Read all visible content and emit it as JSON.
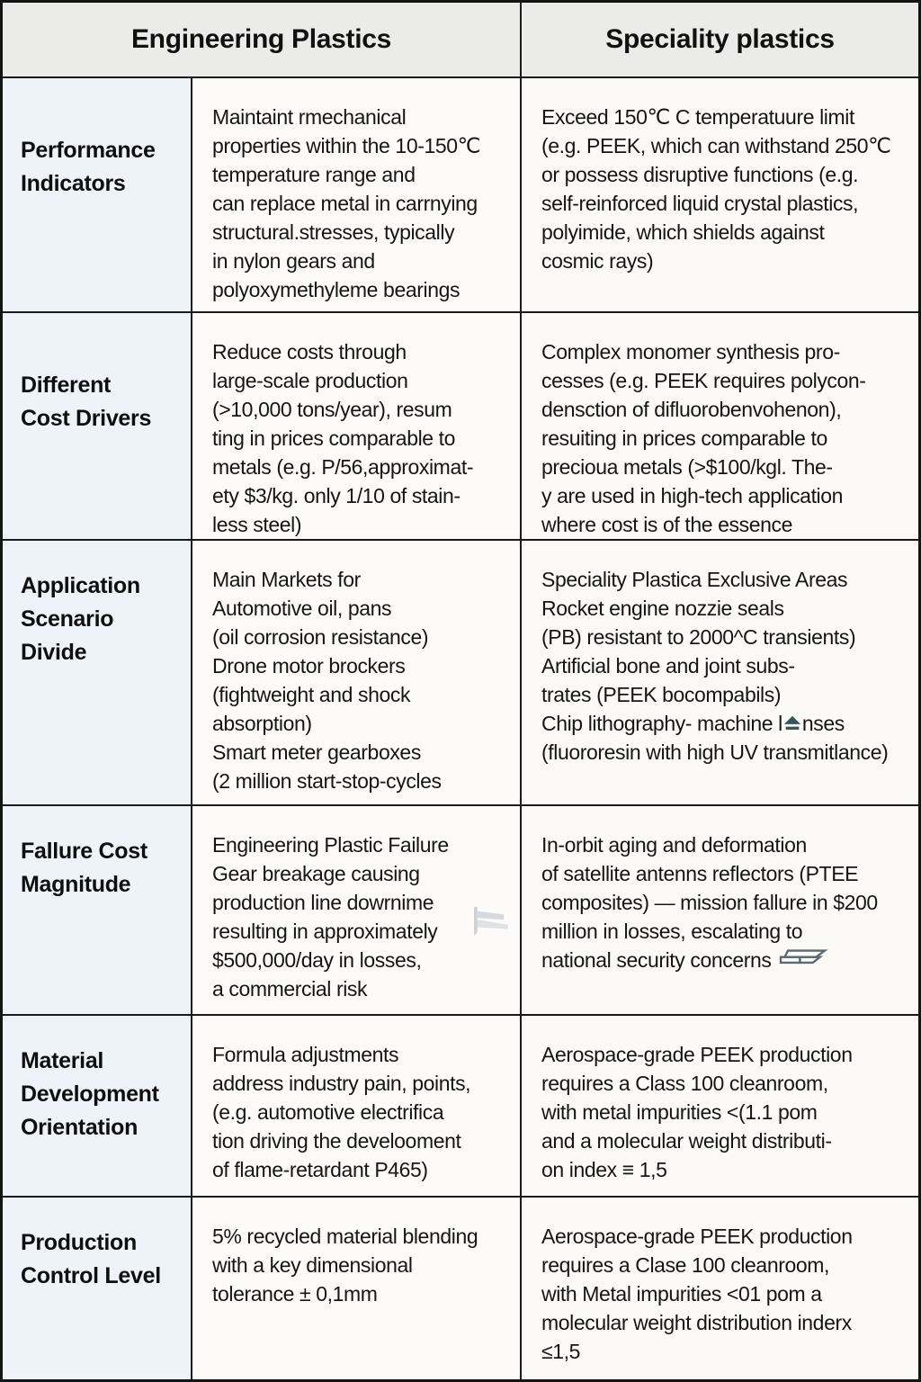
{
  "title": "Engineering Plastics vs Speciality plastics comparison table",
  "header": {
    "engineering": "Engineering Plastics",
    "speciality": "Speciality plastics"
  },
  "colors": {
    "border": "#1a1a1a",
    "header_bg": "#ebebe9",
    "label_bg": "#edf3f8",
    "cell_bg": "#fcfbf9",
    "text": "#151515",
    "eject_icon": "#33565c",
    "planks_icon": "#5c6874",
    "flag_icon": "#cdd2d6"
  },
  "icons": {
    "eject-icon": "small teal triangle-over-bar marker inside the word lenses",
    "flag-icon": "light gray flag / wedge marker",
    "stacked-planks-icon": "gray outlined stacked planks marker"
  },
  "rows": [
    {
      "label": [
        "Performance",
        "Indicators"
      ],
      "engineering_lines": [
        "Maintaint rmechanical",
        "properties within the 10-150℃",
        "temperature range and",
        "can replace metal in carrnying",
        "structural.stresses, typically",
        "in nylon gears and",
        "polyoxymethyleme bearings"
      ],
      "speciality_lines": [
        "Exceed 150℃ C temperatuure limit",
        "(e.g. PEEK, which can withstand 250℃",
        "or possess disruptive functions (e.g.",
        "self-reinforced liquid crystal plastics,",
        "polyimide, which shields against",
        "cosmic rays)"
      ]
    },
    {
      "label": [
        "Different",
        "Cost Drivers"
      ],
      "engineering_lines": [
        "Reduce costs through",
        "large-scale production",
        "(>10,000 tons/year), resum",
        "ting in prices comparable to",
        "metals (e.g. P/56,approximat-",
        "ety $3/kg. only 1/10 of stain-",
        "less steel)"
      ],
      "speciality_lines": [
        "Complex monomer synthesis pro-",
        "cesses (e.g. PEEK requires polycon-",
        "densction of difluorobenvohenon),",
        "resuiting in prices comparable to",
        "precioua metals (>$100/kgl. The-",
        "y are used in high-tech application",
        "where cost is of the essence"
      ]
    },
    {
      "label": [
        "Application",
        "Scenario",
        "Divide"
      ],
      "engineering_lines": [
        "Main Markets for",
        "Automotive oil, pans",
        "(oil corrosion resistance)",
        "Drone motor brockers",
        "(fightweight and shock",
        "absorption)",
        "Smart meter gearboxes",
        "(2 million start-stop-cycles"
      ],
      "speciality_lines": [
        "Speciality Plastica Exclusive Areas",
        "Rocket engine nozzie seals",
        "(PB) resistant to 2000^C transients)",
        "Artificial bone and joint subs-",
        "trates (PEEK bocompabils)",
        [
          "Chip lithography- machine l",
          {
            "icon": "eject-icon"
          },
          "nses"
        ],
        "(fluororesin with high UV transmitlance)"
      ]
    },
    {
      "label": [
        "Fallure Cost",
        "Magnitude"
      ],
      "engineering_float_icon": "flag-icon",
      "engineering_lines": [
        "Engineering Plastic Failure",
        "Gear breakage causing",
        "production line dowrnime",
        "resulting in approximately",
        "$500,000/day in losses,",
        "a commercial risk"
      ],
      "speciality_lines": [
        "In-orbit aging and deformation",
        "of satellite antenns reflectors (PTEE",
        "composites) — mission fallure in $200",
        "million in losses, escalating to",
        [
          "national security concerns ",
          {
            "icon": "stacked-planks-icon"
          }
        ]
      ]
    },
    {
      "label": [
        "Material",
        "Development",
        "Orientation"
      ],
      "engineering_lines": [
        "Formula adjustments",
        "address industry pain, points,",
        "(e.g. automotive electrifica",
        "tion driving the develooment",
        "of flame-retardant P465)"
      ],
      "speciality_lines": [
        "Aerospace-grade PEEK production",
        "requires a Class 100 cleanroom,",
        "with metal impurities <(1.1 pom",
        "and a molecular weight distributi-",
        "on index ≡ 1,5"
      ]
    },
    {
      "label": [
        "Production",
        "Control Level"
      ],
      "engineering_lines": [
        "5% recycled material blending",
        "with a key dimensional",
        "tolerance ± 0,1mm"
      ],
      "speciality_lines": [
        "Aerospace-grade PEEK production",
        "requires a Clase 100 cleanroom,",
        "with Metal impurities <01 pom a",
        "molecular weight distribution inderx",
        "≤1,5"
      ]
    }
  ]
}
